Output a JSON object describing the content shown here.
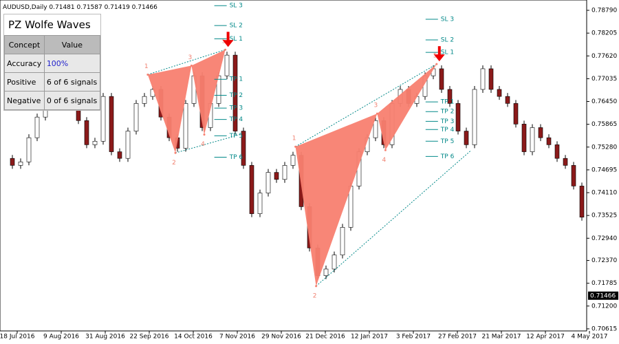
{
  "chart_data": {
    "type": "candlestick",
    "title": "AUDUSD,Daily",
    "quote": "0.71481 0.71587 0.71419 0.71466",
    "current_price": {
      "value": 0.71466,
      "label": "0.71466"
    },
    "ylim": [
      0.70561,
      0.79055
    ],
    "yticks": [
      {
        "value": 0.7879,
        "label": "0.78790"
      },
      {
        "value": 0.78205,
        "label": "0.78205"
      },
      {
        "value": 0.7762,
        "label": "0.77620"
      },
      {
        "value": 0.77035,
        "label": "0.77035"
      },
      {
        "value": 0.7645,
        "label": "0.76450"
      },
      {
        "value": 0.75865,
        "label": "0.75865"
      },
      {
        "value": 0.7528,
        "label": "0.75280"
      },
      {
        "value": 0.74695,
        "label": "0.74695"
      },
      {
        "value": 0.7411,
        "label": "0.74110"
      },
      {
        "value": 0.73525,
        "label": "0.73525"
      },
      {
        "value": 0.7294,
        "label": "0.72940"
      },
      {
        "value": 0.7237,
        "label": "0.72370"
      },
      {
        "value": 0.71785,
        "label": "0.71785"
      },
      {
        "value": 0.712,
        "label": "0.71200"
      },
      {
        "value": 0.70615,
        "label": "0.70615"
      }
    ],
    "x_labels": [
      "18 Jul 2016",
      "9 Aug 2016",
      "31 Aug 2016",
      "22 Sep 2016",
      "14 Oct 2016",
      "7 Nov 2016",
      "29 Nov 2016",
      "21 Dec 2016",
      "12 Jan 2017",
      "3 Feb 2017",
      "27 Feb 2017",
      "21 Mar 2017",
      "12 Apr 2017",
      "4 May 2017"
    ],
    "closes": [
      0.7499,
      0.7481,
      0.749,
      0.7552,
      0.7605,
      0.764,
      0.7658,
      0.7631,
      0.7649,
      0.7596,
      0.7534,
      0.7543,
      0.7658,
      0.7516,
      0.7499,
      0.7569,
      0.764,
      0.7658,
      0.7676,
      0.7605,
      0.7552,
      0.7525,
      0.764,
      0.7711,
      0.7578,
      0.764,
      0.7711,
      0.7764,
      0.7569,
      0.7481,
      0.7357,
      0.741,
      0.7463,
      0.7445,
      0.7481,
      0.7507,
      0.7375,
      0.7269,
      0.7198,
      0.7215,
      0.7251,
      0.7322,
      0.7428,
      0.7516,
      0.7552,
      0.7596,
      0.7534,
      0.764,
      0.7676,
      0.764,
      0.7658,
      0.7711,
      0.7729,
      0.7676,
      0.764,
      0.7569,
      0.7534,
      0.7676,
      0.7729,
      0.7676,
      0.7658,
      0.764,
      0.7587,
      0.7516,
      0.7578,
      0.7552,
      0.7534,
      0.7499,
      0.7481,
      0.7428,
      0.7348
    ],
    "waves": [
      {
        "points": [
          {
            "label": "1",
            "x": 17.4,
            "price": 0.7714
          },
          {
            "label": "2",
            "x": 20.75,
            "price": 0.7513
          },
          {
            "label": "3",
            "x": 22.7,
            "price": 0.7737
          },
          {
            "label": "4",
            "x": 24.25,
            "price": 0.756
          },
          {
            "label": "5",
            "x": 26.8,
            "price": 0.7778
          }
        ],
        "levels": [
          {
            "label": "SL 3",
            "price": 0.7891
          },
          {
            "label": "SL 2",
            "price": 0.784
          },
          {
            "label": "SL 1",
            "price": 0.7806
          },
          {
            "label": "TP 1",
            "price": 0.7702
          },
          {
            "label": "TP 2",
            "price": 0.7661
          },
          {
            "label": "TP 3",
            "price": 0.7628
          },
          {
            "label": "TP 4",
            "price": 0.7599
          },
          {
            "label": "TP 5",
            "price": 0.7557
          },
          {
            "label": "TP 6",
            "price": 0.7502
          }
        ]
      },
      {
        "points": [
          {
            "label": "1",
            "x": 35.3,
            "price": 0.7529
          },
          {
            "label": "2",
            "x": 37.8,
            "price": 0.7171
          },
          {
            "label": "3",
            "x": 45.2,
            "price": 0.7614
          },
          {
            "label": "4",
            "x": 46.2,
            "price": 0.752
          },
          {
            "label": "5",
            "x": 52.4,
            "price": 0.7741
          }
        ],
        "levels": [
          {
            "label": "SL 3",
            "price": 0.7856
          },
          {
            "label": "SL 2",
            "price": 0.7803
          },
          {
            "label": "SL 1",
            "price": 0.7771
          },
          {
            "label": "TP 1",
            "price": 0.7644
          },
          {
            "label": "TP 2",
            "price": 0.7619
          },
          {
            "label": "TP 3",
            "price": 0.7594
          },
          {
            "label": "TP 4",
            "price": 0.7573
          },
          {
            "label": "TP 5",
            "price": 0.7543
          },
          {
            "label": "TP 6",
            "price": 0.7504
          }
        ]
      }
    ]
  },
  "panel": {
    "title": "PZ Wolfe Waves",
    "header": [
      "Concept",
      "Value"
    ],
    "rows": [
      [
        "Accuracy",
        "100%"
      ],
      [
        "Positive",
        "6 of 6 signals"
      ],
      [
        "Negative",
        "0 of 6 signals"
      ]
    ]
  }
}
